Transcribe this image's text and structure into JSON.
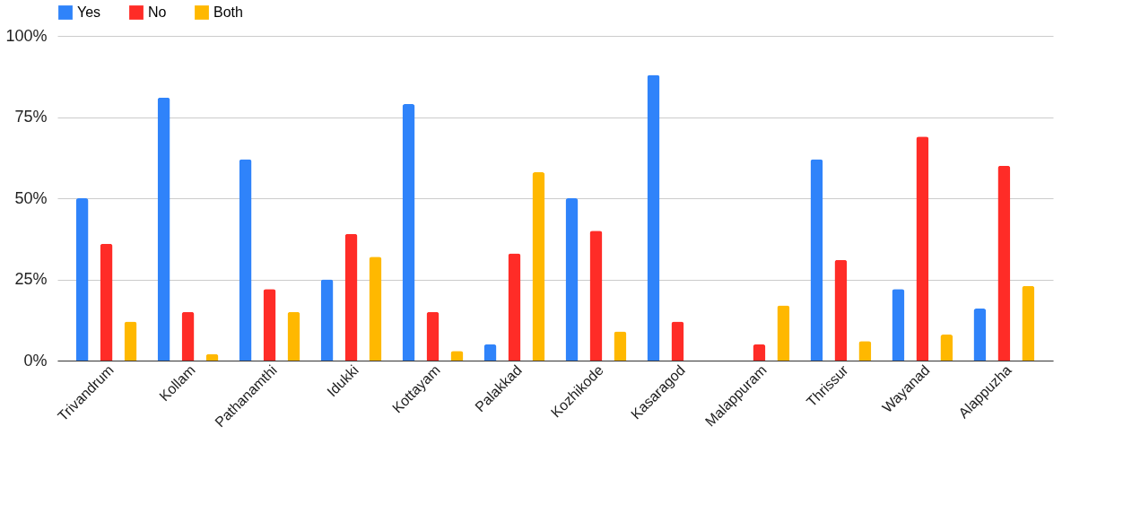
{
  "chart_data": {
    "type": "bar",
    "categories": [
      "Trivandrum",
      "Kollam",
      "Pathanamthi",
      "Idukki",
      "Kottayam",
      "Palakkad",
      "Kozhikode",
      "Kasaragod",
      "Malappuram",
      "Thrissur",
      "Wayanad",
      "Alappuzha"
    ],
    "series": [
      {
        "name": "Yes",
        "color": "#2f83fa",
        "values": [
          50,
          81,
          62,
          25,
          79,
          5,
          50,
          88,
          0,
          62,
          22,
          16
        ]
      },
      {
        "name": "No",
        "color": "#ff2c27",
        "values": [
          36,
          15,
          22,
          39,
          15,
          33,
          40,
          12,
          5,
          31,
          69,
          60
        ]
      },
      {
        "name": "Both",
        "color": "#ffb800",
        "values": [
          12,
          2,
          15,
          32,
          3,
          58,
          9,
          0,
          17,
          6,
          8,
          23
        ]
      }
    ],
    "ylim": [
      0,
      100
    ],
    "yticks": [
      {
        "value": 0,
        "label": "0%"
      },
      {
        "value": 25,
        "label": "25%"
      },
      {
        "value": 50,
        "label": "50%"
      },
      {
        "value": 75,
        "label": "75%"
      },
      {
        "value": 100,
        "label": "100%"
      }
    ],
    "grid": "y",
    "legend": "top"
  }
}
